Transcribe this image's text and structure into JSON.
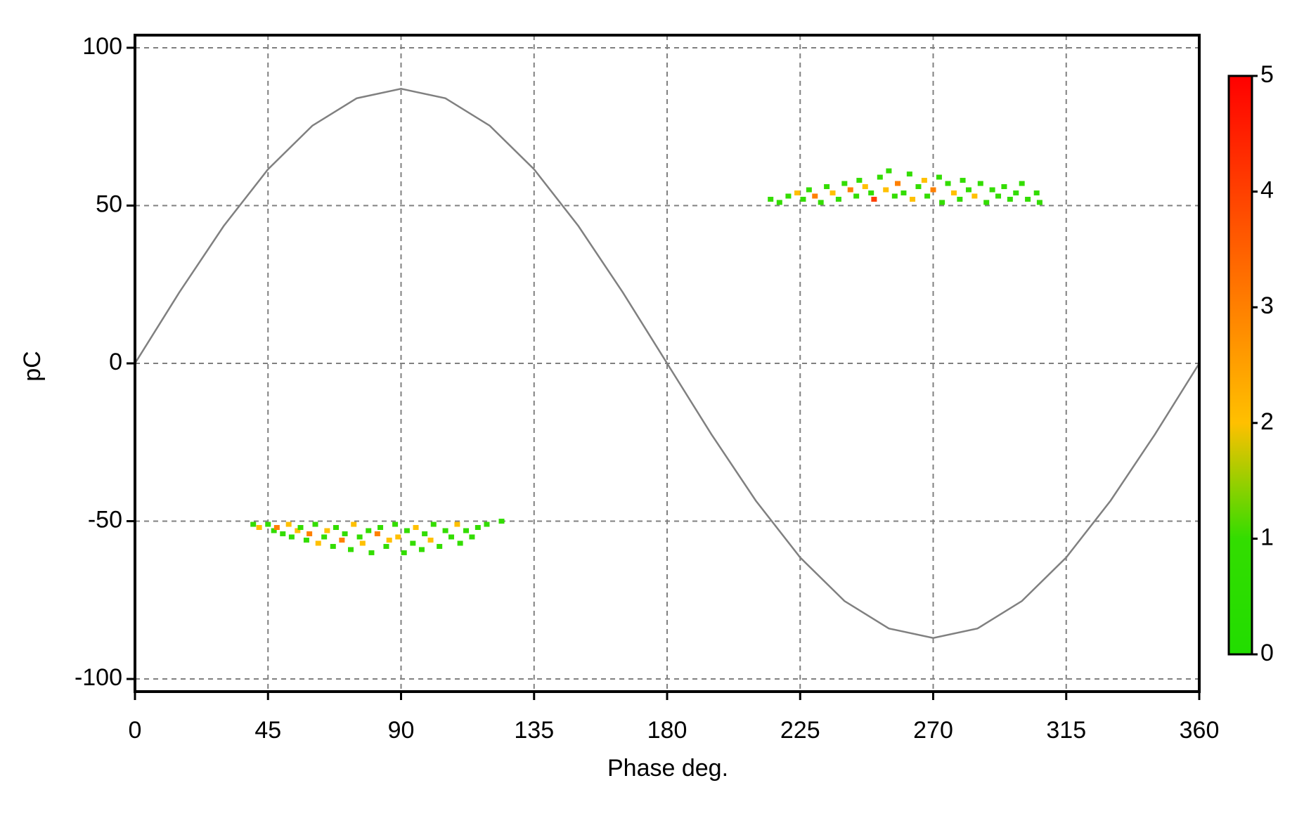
{
  "chart_data": {
    "type": "scatter",
    "x_label": "Phase deg.",
    "y_label": "pC",
    "xlim": [
      0,
      360
    ],
    "ylim": [
      -104,
      104
    ],
    "xticks": [
      0,
      45,
      90,
      135,
      180,
      225,
      270,
      315,
      360
    ],
    "yticks": [
      -100,
      -50,
      0,
      50,
      100
    ],
    "grid": true,
    "reference": {
      "type": "line",
      "color": "#808080",
      "x": [
        0,
        15,
        30,
        45,
        60,
        75,
        90,
        105,
        120,
        135,
        150,
        165,
        180,
        195,
        210,
        225,
        240,
        255,
        270,
        285,
        300,
        315,
        330,
        345,
        360
      ],
      "values": [
        0,
        22.5,
        43.5,
        61.5,
        75.3,
        84,
        87,
        84,
        75.3,
        61.5,
        43.5,
        22.5,
        0,
        -22.5,
        -43.5,
        -61.5,
        -75.3,
        -84,
        -87,
        -84,
        -75.3,
        -61.5,
        -43.5,
        -22.5,
        0
      ]
    },
    "points": {
      "x": [
        40,
        42,
        45,
        47,
        48,
        50,
        52,
        53,
        55,
        56,
        58,
        59,
        61,
        62,
        64,
        65,
        67,
        68,
        70,
        71,
        73,
        74,
        76,
        77,
        79,
        80,
        82,
        83,
        85,
        86,
        88,
        89,
        91,
        92,
        94,
        95,
        97,
        98,
        100,
        101,
        103,
        105,
        107,
        109,
        110,
        112,
        114,
        116,
        119,
        124,
        215,
        218,
        221,
        224,
        226,
        228,
        230,
        232,
        234,
        236,
        238,
        240,
        242,
        244,
        245,
        247,
        249,
        250,
        252,
        254,
        255,
        257,
        258,
        260,
        262,
        263,
        265,
        267,
        268,
        270,
        272,
        273,
        275,
        277,
        279,
        280,
        282,
        284,
        286,
        288,
        290,
        292,
        294,
        296,
        298,
        300,
        302,
        305,
        306
      ],
      "values": [
        -51,
        -52,
        -51,
        -53,
        -52,
        -54,
        -51,
        -55,
        -53,
        -52,
        -56,
        -54,
        -51,
        -57,
        -55,
        -53,
        -58,
        -52,
        -56,
        -54,
        -59,
        -51,
        -55,
        -57,
        -53,
        -60,
        -54,
        -52,
        -58,
        -56,
        -51,
        -55,
        -60,
        -53,
        -57,
        -52,
        -59,
        -54,
        -56,
        -51,
        -58,
        -53,
        -55,
        -51,
        -57,
        -53,
        -55,
        -52,
        -51,
        -50,
        52,
        51,
        53,
        54,
        52,
        55,
        53,
        51,
        56,
        54,
        52,
        57,
        55,
        53,
        58,
        56,
        54,
        52,
        59,
        55,
        61,
        53,
        57,
        54,
        60,
        52,
        56,
        58,
        53,
        55,
        59,
        51,
        57,
        54,
        52,
        58,
        55,
        53,
        57,
        51,
        55,
        53,
        56,
        52,
        54,
        57,
        52,
        54,
        51
      ],
      "counts": [
        1,
        2,
        1,
        1,
        3,
        1,
        2,
        1,
        2,
        1,
        1,
        3,
        1,
        2,
        1,
        2,
        1,
        1,
        3,
        1,
        1,
        2,
        1,
        2,
        1,
        1,
        3,
        1,
        1,
        2,
        1,
        2,
        1,
        1,
        1,
        2,
        1,
        1,
        2,
        1,
        1,
        1,
        1,
        2,
        1,
        1,
        1,
        1,
        1,
        1,
        1,
        1,
        1,
        2,
        1,
        1,
        3,
        1,
        1,
        2,
        1,
        1,
        3,
        1,
        1,
        2,
        1,
        4,
        1,
        2,
        1,
        1,
        3,
        1,
        1,
        2,
        1,
        2,
        1,
        3,
        1,
        1,
        1,
        2,
        1,
        1,
        1,
        2,
        1,
        1,
        1,
        1,
        1,
        1,
        1,
        1,
        1,
        1,
        1
      ]
    },
    "colorbar": {
      "clim": [
        0,
        5
      ],
      "ticks": [
        0,
        1,
        2,
        3,
        4,
        5
      ],
      "colors": [
        "#22dd00",
        "#33dd00",
        "#ffc000",
        "#ff8000",
        "#ff4000",
        "#ff0000"
      ]
    }
  }
}
